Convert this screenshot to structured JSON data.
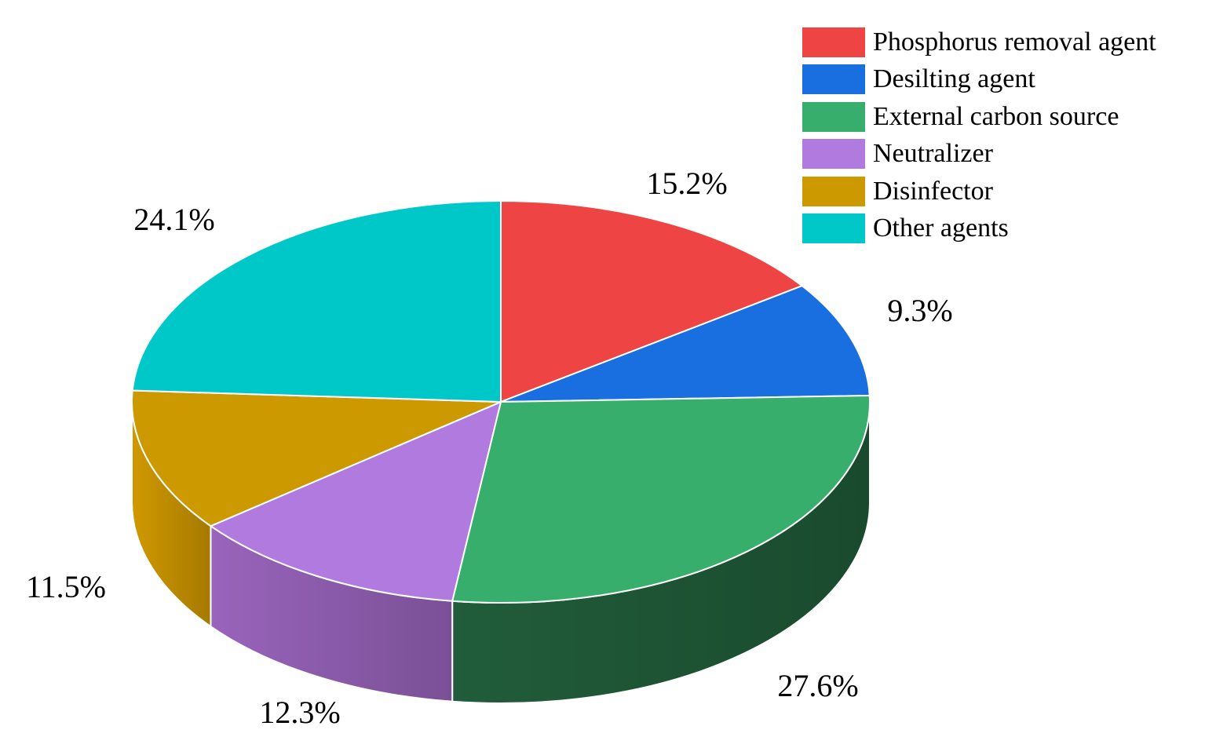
{
  "chart_data": {
    "type": "pie",
    "style": "3d",
    "title": "",
    "legend_position": "top-right",
    "slices": [
      {
        "name": "Phosphorus removal agent",
        "value": 15.2,
        "label": "15.2%",
        "color": "#ef4444",
        "side_color": "#a32d2d"
      },
      {
        "name": "Desilting agent",
        "value": 9.3,
        "label": "9.3%",
        "color": "#1a6fe0",
        "side_color": "#12479a"
      },
      {
        "name": "External carbon source",
        "value": 27.6,
        "label": "27.6%",
        "color": "#38ae6d",
        "side_color": "#1a4a2e"
      },
      {
        "name": "Neutralizer",
        "value": 12.3,
        "label": "12.3%",
        "color": "#b07ade",
        "side_color": "#7a5096"
      },
      {
        "name": "Disinfector",
        "value": 11.5,
        "label": "11.5%",
        "color": "#cc9900",
        "side_color": "#a67a00"
      },
      {
        "name": "Other agents",
        "value": 24.1,
        "label": "24.1%",
        "color": "#00c8c8",
        "side_color": "#008c8c"
      }
    ]
  }
}
